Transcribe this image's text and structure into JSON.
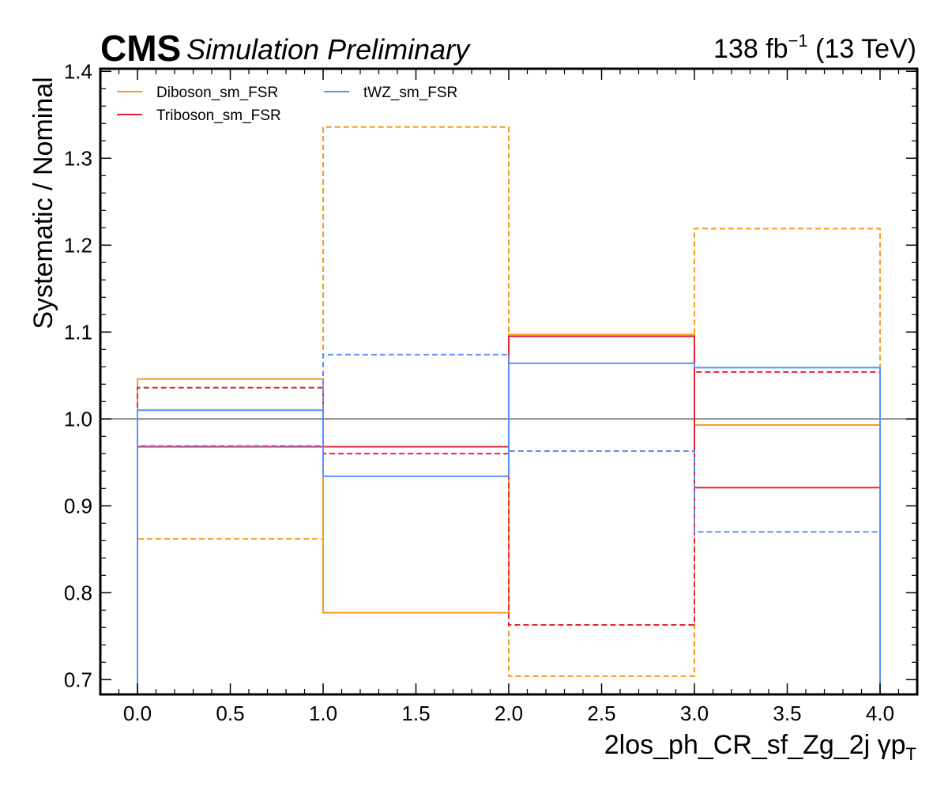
{
  "header": {
    "experiment": "CMS",
    "status": "Simulation Preliminary",
    "lumi_value": "138 fb",
    "lumi_exponent": "−1",
    "energy": " (13 TeV)"
  },
  "chart_data": {
    "type": "line",
    "subtype": "step-histogram",
    "bin_edges": [
      0.0,
      1.0,
      2.0,
      3.0,
      4.0
    ],
    "xlabel": "2los_ph_CR_sf_Zg_2j   γp",
    "xlabel_subscript": "T",
    "ylabel": "Systematic / Nominal",
    "xlim": [
      -0.2,
      4.2
    ],
    "ylim": [
      0.683,
      1.403
    ],
    "x_ticks": [
      0.0,
      0.5,
      1.0,
      1.5,
      2.0,
      2.5,
      3.0,
      3.5,
      4.0
    ],
    "x_tick_labels": [
      "0.0",
      "0.5",
      "1.0",
      "1.5",
      "2.0",
      "2.5",
      "3.0",
      "3.5",
      "4.0"
    ],
    "y_ticks": [
      0.7,
      0.8,
      0.9,
      1.0,
      1.1,
      1.2,
      1.3,
      1.4
    ],
    "y_tick_labels": [
      "0.7",
      "0.8",
      "0.9",
      "1.0",
      "1.1",
      "1.2",
      "1.3",
      "1.4"
    ],
    "reference_line": 1.0,
    "reference_color": "#808080",
    "grid": false,
    "legend_placement": "top-left",
    "series": [
      {
        "name": "Diboson_sm_FSR",
        "color": "#f89c20",
        "style": "solid",
        "values": [
          1.046,
          0.777,
          1.097,
          0.993
        ]
      },
      {
        "name": "",
        "color": "#f89c20",
        "style": "dashed",
        "values": [
          0.862,
          1.336,
          0.704,
          1.219
        ]
      },
      {
        "name": "Triboson_sm_FSR",
        "color": "#e42536",
        "style": "solid",
        "values": [
          0.968,
          0.968,
          1.095,
          0.921
        ]
      },
      {
        "name": "",
        "color": "#e42536",
        "style": "dashed",
        "values": [
          1.036,
          0.96,
          0.763,
          1.054
        ]
      },
      {
        "name": "tWZ_sm_FSR",
        "color": "#5790fc",
        "style": "solid",
        "values": [
          1.01,
          0.934,
          1.064,
          1.059
        ]
      },
      {
        "name": "",
        "color": "#5790fc",
        "style": "dashed",
        "values": [
          0.969,
          1.074,
          0.963,
          0.87
        ]
      }
    ]
  }
}
